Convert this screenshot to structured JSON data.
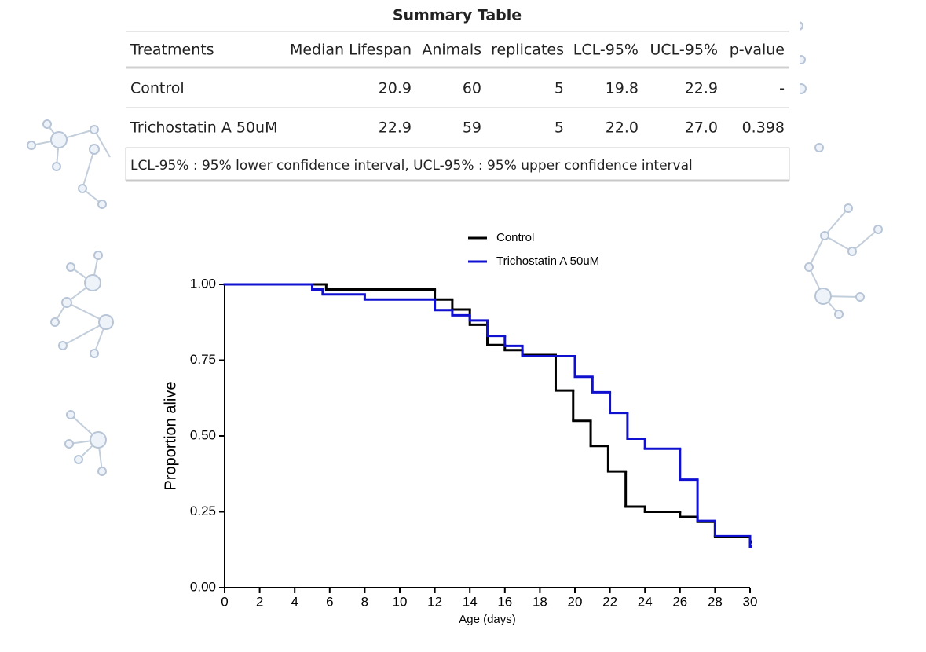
{
  "table": {
    "title": "Summary Table",
    "columns": [
      "Treatments",
      "Median Lifespan",
      "Animals",
      "replicates",
      "LCL-95%",
      "UCL-95%",
      "p-value"
    ],
    "rows": [
      [
        "Control",
        "20.9",
        "60",
        "5",
        "19.8",
        "22.9",
        "-"
      ],
      [
        "Trichostatin A 50uM",
        "22.9",
        "59",
        "5",
        "22.0",
        "27.0",
        "0.398"
      ]
    ],
    "footnote": "LCL-95% : 95% lower confidence interval, UCL-95% : 95% upper confidence interval"
  },
  "chart_data": {
    "type": "step",
    "xlabel": "Age (days)",
    "ylabel": "Proportion alive",
    "xlim": [
      0,
      30
    ],
    "ylim": [
      0,
      1
    ],
    "xticks": [
      0,
      2,
      4,
      6,
      8,
      10,
      12,
      14,
      16,
      18,
      20,
      22,
      24,
      26,
      28,
      30
    ],
    "yticks": [
      {
        "value": 0,
        "label": "0.00"
      },
      0.25,
      {
        "value": 0.5,
        "label": "0.50"
      },
      0.75,
      {
        "value": 1,
        "label": "1.00"
      }
    ],
    "series": [
      {
        "name": "Control",
        "color": "#000000",
        "x": [
          0,
          5.8,
          12,
          13,
          14,
          15,
          16,
          17,
          18.9,
          19.9,
          20.9,
          21.9,
          22.9,
          24,
          26,
          27,
          28,
          30
        ],
        "values": [
          1,
          0.983,
          0.95,
          0.917,
          0.867,
          0.8,
          0.783,
          0.767,
          0.65,
          0.55,
          0.467,
          0.383,
          0.267,
          0.25,
          0.233,
          0.217,
          0.167,
          0.15
        ]
      },
      {
        "name": "Trichostatin A 50uM",
        "color": "#1010d0",
        "x": [
          0,
          5,
          5.6,
          8,
          12,
          13,
          14,
          15,
          16,
          17,
          20,
          21,
          22,
          23,
          24,
          26,
          27,
          28,
          30
        ],
        "values": [
          1,
          0.983,
          0.967,
          0.95,
          0.915,
          0.898,
          0.881,
          0.83,
          0.797,
          0.763,
          0.695,
          0.644,
          0.576,
          0.491,
          0.458,
          0.356,
          0.22,
          0.17,
          0.136
        ]
      }
    ]
  }
}
